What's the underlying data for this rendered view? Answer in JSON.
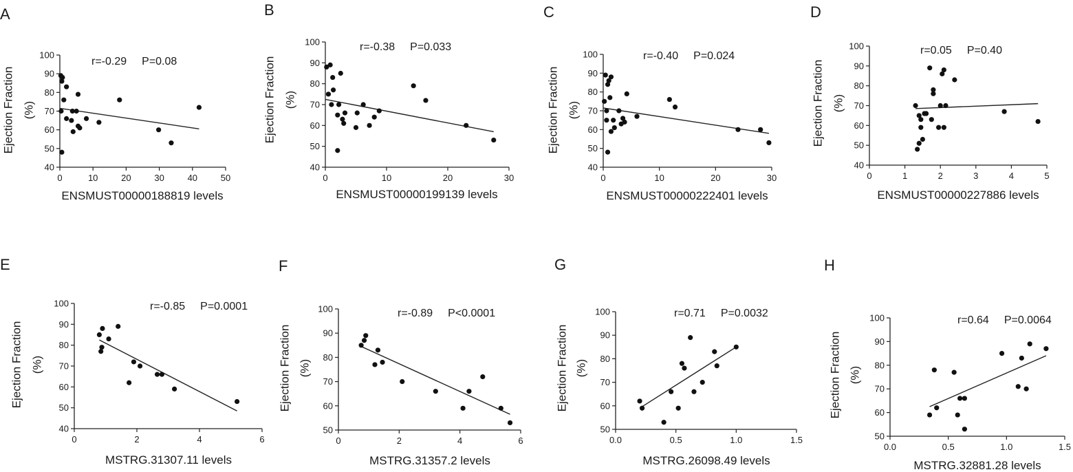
{
  "figure": {
    "chart_data": [
      {
        "type": "scatter",
        "panel": "A",
        "xlabel": "ENSMUST00000188819 levels",
        "ylabel": "Ejection Fraction",
        "ylabel_unit": "(%)",
        "r_label": "r=-0.29",
        "p_label": "P=0.08",
        "xlim": [
          0,
          50
        ],
        "ylim": [
          40,
          100
        ],
        "xticks": [
          "0",
          "10",
          "20",
          "30",
          "40",
          "50"
        ],
        "yticks": [
          "40",
          "50",
          "60",
          "70",
          "80",
          "90",
          "100"
        ],
        "points": [
          [
            0.3,
            89
          ],
          [
            0.6,
            86
          ],
          [
            0.8,
            88
          ],
          [
            1.2,
            76
          ],
          [
            0.4,
            70
          ],
          [
            0.6,
            48
          ],
          [
            2,
            83
          ],
          [
            2,
            66
          ],
          [
            3.5,
            65
          ],
          [
            3.8,
            70
          ],
          [
            4,
            59
          ],
          [
            5,
            70
          ],
          [
            5.5,
            79
          ],
          [
            5.5,
            62
          ],
          [
            6,
            61
          ],
          [
            8,
            66
          ],
          [
            11.8,
            64
          ],
          [
            18,
            76
          ],
          [
            29.8,
            60
          ],
          [
            33.6,
            53
          ],
          [
            42,
            72
          ]
        ],
        "fit": [
          [
            0,
            71.5
          ],
          [
            42,
            60.5
          ]
        ]
      },
      {
        "type": "scatter",
        "panel": "B",
        "xlabel": "ENSMUST00000199139 levels",
        "ylabel": "Ejection Fraction",
        "ylabel_unit": "(%)",
        "r_label": "r=-0.38",
        "p_label": "P=0.033",
        "xlim": [
          0,
          30
        ],
        "ylim": [
          40,
          100
        ],
        "xticks": [
          "0",
          "10",
          "20",
          "30"
        ],
        "yticks": [
          "40",
          "50",
          "60",
          "70",
          "80",
          "90",
          "100"
        ],
        "points": [
          [
            0.2,
            88
          ],
          [
            0.5,
            75
          ],
          [
            0.8,
            89
          ],
          [
            1,
            70
          ],
          [
            1.2,
            83
          ],
          [
            1.3,
            77
          ],
          [
            2,
            65
          ],
          [
            2.2,
            70
          ],
          [
            2.5,
            85
          ],
          [
            2.8,
            63
          ],
          [
            3,
            61
          ],
          [
            3.2,
            66
          ],
          [
            2,
            48
          ],
          [
            5,
            59
          ],
          [
            5.2,
            66
          ],
          [
            6.2,
            70
          ],
          [
            7.2,
            60
          ],
          [
            8,
            64
          ],
          [
            8.8,
            67
          ],
          [
            14.4,
            79
          ],
          [
            16.4,
            72
          ],
          [
            23,
            60
          ],
          [
            27.5,
            53
          ]
        ],
        "fit": [
          [
            0,
            72.5
          ],
          [
            27.5,
            57
          ]
        ]
      },
      {
        "type": "scatter",
        "panel": "C",
        "xlabel": "ENSMUST00000222401  levels",
        "ylabel": "Ejection Fraction",
        "ylabel_unit": "(%)",
        "r_label": "r=-0.40",
        "p_label": "P=0.024",
        "xlim": [
          0,
          30
        ],
        "ylim": [
          40,
          100
        ],
        "xticks": [
          "0",
          "10",
          "20",
          "30"
        ],
        "yticks": [
          "40",
          "50",
          "60",
          "70",
          "80",
          "90",
          "100"
        ],
        "points": [
          [
            0.2,
            75
          ],
          [
            0.4,
            89
          ],
          [
            0.6,
            70
          ],
          [
            0.6,
            65
          ],
          [
            0.8,
            48
          ],
          [
            0.8,
            84
          ],
          [
            1,
            86
          ],
          [
            1.2,
            77
          ],
          [
            1.4,
            88
          ],
          [
            1.4,
            59
          ],
          [
            1.8,
            65
          ],
          [
            2,
            61
          ],
          [
            2.8,
            70
          ],
          [
            3.2,
            63
          ],
          [
            3.5,
            66
          ],
          [
            3.8,
            64
          ],
          [
            4.2,
            79
          ],
          [
            6,
            67
          ],
          [
            11.8,
            76
          ],
          [
            12.8,
            72
          ],
          [
            24,
            60
          ],
          [
            28,
            60
          ],
          [
            29.5,
            53
          ]
        ],
        "fit": [
          [
            0,
            71.5
          ],
          [
            29.5,
            58
          ]
        ]
      },
      {
        "type": "scatter",
        "panel": "D",
        "xlabel": "ENSMUST00000227886 levels",
        "ylabel": "Ejection Fraction",
        "ylabel_unit": "(%)",
        "r_label": "r=0.05",
        "p_label": "P=0.40",
        "xlim": [
          0,
          5
        ],
        "ylim": [
          40,
          100
        ],
        "xticks": [
          "0",
          "1",
          "2",
          "3",
          "4",
          "5"
        ],
        "yticks": [
          "40",
          "50",
          "60",
          "70",
          "80",
          "90",
          "100"
        ],
        "points": [
          [
            1.3,
            70
          ],
          [
            1.35,
            48
          ],
          [
            1.4,
            51
          ],
          [
            1.4,
            65
          ],
          [
            1.45,
            63
          ],
          [
            1.45,
            59
          ],
          [
            1.5,
            53
          ],
          [
            1.55,
            66
          ],
          [
            1.6,
            66
          ],
          [
            1.7,
            89
          ],
          [
            1.75,
            63
          ],
          [
            1.8,
            78
          ],
          [
            1.8,
            76
          ],
          [
            1.95,
            59
          ],
          [
            2,
            70
          ],
          [
            2.05,
            86
          ],
          [
            2.1,
            88
          ],
          [
            2.1,
            59
          ],
          [
            2.15,
            70
          ],
          [
            2.4,
            83
          ],
          [
            3.8,
            67
          ],
          [
            4.75,
            62
          ]
        ],
        "fit": [
          [
            1.3,
            68.5
          ],
          [
            4.75,
            71
          ]
        ]
      },
      {
        "type": "scatter",
        "panel": "E",
        "xlabel": "MSTRG.31307.11 levels",
        "ylabel": "Ejection Fraction",
        "ylabel_unit": "(%)",
        "r_label": "r=-0.85",
        "p_label": "P=0.0001",
        "xlim": [
          0,
          6
        ],
        "ylim": [
          40,
          100
        ],
        "xticks": [
          "0",
          "2",
          "4",
          "6"
        ],
        "yticks": [
          "40",
          "50",
          "60",
          "70",
          "80",
          "90",
          "100"
        ],
        "points": [
          [
            0.8,
            85
          ],
          [
            0.9,
            88
          ],
          [
            0.85,
            77
          ],
          [
            0.88,
            79
          ],
          [
            1.1,
            83
          ],
          [
            1.4,
            89
          ],
          [
            1.75,
            62
          ],
          [
            1.9,
            72
          ],
          [
            2.1,
            70
          ],
          [
            2.65,
            66
          ],
          [
            2.8,
            66
          ],
          [
            3.2,
            59
          ],
          [
            5.2,
            53
          ]
        ],
        "fit": [
          [
            0.8,
            82.5
          ],
          [
            5.2,
            48.5
          ]
        ]
      },
      {
        "type": "scatter",
        "panel": "F",
        "xlabel": "MSTRG.31357.2 levels",
        "ylabel": "Ejection Fraction",
        "ylabel_unit": "(%)",
        "r_label": "r=-0.89",
        "p_label": "P<0.0001",
        "xlim": [
          0,
          6
        ],
        "ylim": [
          50,
          100
        ],
        "xticks": [
          "0",
          "2",
          "4",
          "6"
        ],
        "yticks": [
          "50",
          "60",
          "70",
          "80",
          "90",
          "100"
        ],
        "points": [
          [
            0.75,
            85
          ],
          [
            0.85,
            87
          ],
          [
            0.9,
            89
          ],
          [
            1.2,
            77
          ],
          [
            1.3,
            83
          ],
          [
            1.45,
            78
          ],
          [
            2.1,
            70
          ],
          [
            3.2,
            66
          ],
          [
            4.1,
            59
          ],
          [
            4.3,
            66
          ],
          [
            4.75,
            72
          ],
          [
            5.35,
            59
          ],
          [
            5.65,
            53
          ]
        ],
        "fit": [
          [
            0.75,
            84.5
          ],
          [
            5.65,
            56.5
          ]
        ]
      },
      {
        "type": "scatter",
        "panel": "G",
        "xlabel": "MSTRG.26098.49 levels",
        "ylabel": "Ejection Fraction",
        "ylabel_unit": "(%)",
        "r_label": "r=0.71",
        "p_label": "P=0.0032",
        "xlim": [
          0,
          1.5
        ],
        "ylim": [
          50,
          100
        ],
        "xticks": [
          "0.0",
          "0.5",
          "1.0",
          "1.5"
        ],
        "yticks": [
          "50",
          "60",
          "70",
          "80",
          "90",
          "100"
        ],
        "points": [
          [
            0.2,
            62
          ],
          [
            0.22,
            59
          ],
          [
            0.4,
            53
          ],
          [
            0.46,
            66
          ],
          [
            0.52,
            59
          ],
          [
            0.55,
            78
          ],
          [
            0.57,
            76
          ],
          [
            0.62,
            89
          ],
          [
            0.65,
            66
          ],
          [
            0.72,
            70
          ],
          [
            0.82,
            83
          ],
          [
            0.84,
            77
          ],
          [
            1.0,
            85
          ]
        ],
        "fit": [
          [
            0.2,
            59
          ],
          [
            1.0,
            85
          ]
        ]
      },
      {
        "type": "scatter",
        "panel": "H",
        "xlabel": "MSTRG.32881.28 levels",
        "ylabel": "Ejection Fraction",
        "ylabel_unit": "(%)",
        "r_label": "r=0.64",
        "p_label": "P=0.0064",
        "xlim": [
          0,
          1.5
        ],
        "ylim": [
          50,
          100
        ],
        "xticks": [
          "0.0",
          "0.5",
          "1.0",
          "1.5"
        ],
        "yticks": [
          "50",
          "60",
          "70",
          "80",
          "90",
          "100"
        ],
        "points": [
          [
            0.34,
            59
          ],
          [
            0.38,
            78
          ],
          [
            0.4,
            62
          ],
          [
            0.55,
            77
          ],
          [
            0.58,
            59
          ],
          [
            0.6,
            66
          ],
          [
            0.64,
            66
          ],
          [
            0.64,
            53
          ],
          [
            0.96,
            85
          ],
          [
            1.1,
            71
          ],
          [
            1.13,
            83
          ],
          [
            1.17,
            70
          ],
          [
            1.2,
            89
          ],
          [
            1.34,
            87
          ]
        ],
        "fit": [
          [
            0.34,
            62.5
          ],
          [
            1.34,
            84
          ]
        ]
      }
    ]
  }
}
